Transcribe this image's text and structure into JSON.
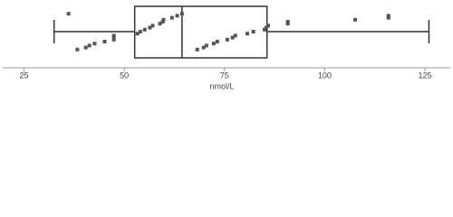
{
  "chart_data": {
    "type": "boxplot",
    "x_label": "nmol/L",
    "whisker_low": 32.5,
    "q1": 52.6,
    "median": 64.4,
    "q3": 85.6,
    "whisker_high": 126,
    "points": [
      36.1,
      38.3,
      40.4,
      41.3,
      42.6,
      45.1,
      47.4,
      47.4,
      47.4,
      53.3,
      54,
      55.1,
      56.4,
      57.1,
      58.9,
      59.6,
      59.8,
      61.9,
      63.2,
      64.4,
      68.2,
      69.8,
      70.5,
      72.3,
      73.2,
      75.7,
      77,
      77.7,
      80.7,
      82.2,
      85,
      85.4,
      85.9,
      90.8,
      90.8,
      107.6,
      115.9,
      115.9
    ],
    "color": "#333333",
    "xlim": [
      19,
      132
    ],
    "xticks": [
      25,
      50,
      75,
      100,
      125
    ]
  }
}
